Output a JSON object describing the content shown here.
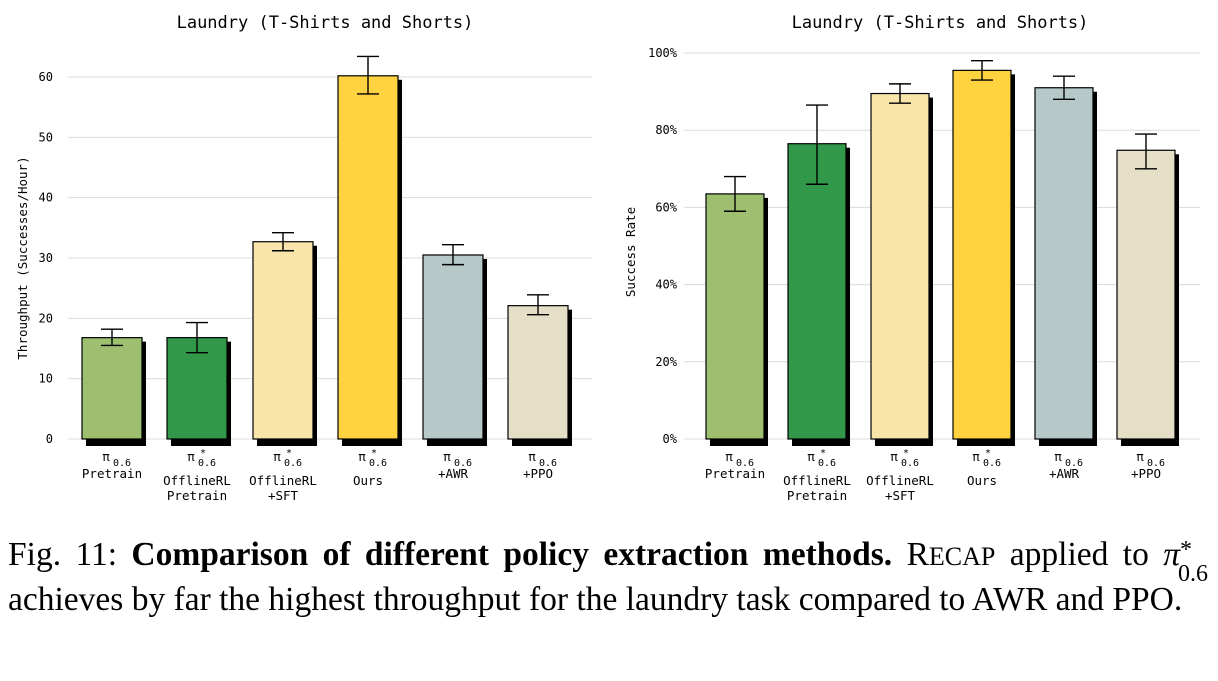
{
  "figure": {
    "caption": {
      "prefix": "Fig. 11:",
      "bold": "Comparison of different policy extraction methods.",
      "recap_first": "R",
      "recap_rest": "ECAP",
      "text1": "applied to",
      "pi": "π",
      "sup": "*",
      "sub": "0.6",
      "text2": "achieves by far the highest throughput for the laundry task compared to AWR and PPO."
    }
  },
  "chart_data": [
    {
      "type": "bar",
      "title": "Laundry (T-Shirts and Shorts)",
      "ylabel": "Throughput (Successes/Hour)",
      "xlabel": "",
      "ylim": [
        0,
        65
      ],
      "yticks": [
        0,
        10,
        20,
        30,
        40,
        50,
        60
      ],
      "ytick_labels": [
        "0",
        "10",
        "20",
        "30",
        "40",
        "50",
        "60"
      ],
      "grid": true,
      "categories": [
        {
          "pi": "π",
          "sup": "",
          "sub": "0.6",
          "line1": "Pretrain",
          "line2": ""
        },
        {
          "pi": "π",
          "sup": "*",
          "sub": "0.6",
          "line1": "OfflineRL",
          "line2": "Pretrain"
        },
        {
          "pi": "π",
          "sup": "*",
          "sub": "0.6",
          "line1": "OfflineRL",
          "line2": "+SFT"
        },
        {
          "pi": "π",
          "sup": "*",
          "sub": "0.6",
          "line1": "Ours",
          "line2": ""
        },
        {
          "pi": "π",
          "sup": "",
          "sub": "0.6",
          "line1": "+AWR",
          "line2": ""
        },
        {
          "pi": "π",
          "sup": "",
          "sub": "0.6",
          "line1": "+PPO",
          "line2": ""
        }
      ],
      "values": [
        16.8,
        16.8,
        32.7,
        60.2,
        30.5,
        22.1
      ],
      "error_low": [
        15.5,
        14.3,
        31.2,
        57.2,
        28.9,
        20.6
      ],
      "error_high": [
        18.2,
        19.3,
        34.2,
        63.4,
        32.2,
        23.9
      ],
      "colors": [
        "#9dbf6f",
        "#33994a",
        "#f9e4aa",
        "#ffd23f",
        "#b7c8c8",
        "#e6dfc8"
      ]
    },
    {
      "type": "bar",
      "title": "Laundry (T-Shirts and Shorts)",
      "ylabel": "Success Rate",
      "xlabel": "",
      "ylim": [
        0,
        100
      ],
      "yticks": [
        0,
        20,
        40,
        60,
        80,
        100
      ],
      "ytick_labels": [
        "0%",
        "20%",
        "40%",
        "60%",
        "80%",
        "100%"
      ],
      "grid": true,
      "categories": [
        {
          "pi": "π",
          "sup": "",
          "sub": "0.6",
          "line1": "Pretrain",
          "line2": ""
        },
        {
          "pi": "π",
          "sup": "*",
          "sub": "0.6",
          "line1": "OfflineRL",
          "line2": "Pretrain"
        },
        {
          "pi": "π",
          "sup": "*",
          "sub": "0.6",
          "line1": "OfflineRL",
          "line2": "+SFT"
        },
        {
          "pi": "π",
          "sup": "*",
          "sub": "0.6",
          "line1": "Ours",
          "line2": ""
        },
        {
          "pi": "π",
          "sup": "",
          "sub": "0.6",
          "line1": "+AWR",
          "line2": ""
        },
        {
          "pi": "π",
          "sup": "",
          "sub": "0.6",
          "line1": "+PPO",
          "line2": ""
        }
      ],
      "values": [
        63.5,
        76.5,
        89.5,
        95.5,
        91.0,
        74.8
      ],
      "error_low": [
        59.0,
        66.0,
        87.0,
        93.0,
        88.0,
        70.0
      ],
      "error_high": [
        68.0,
        86.5,
        92.0,
        98.0,
        94.0,
        79.0
      ],
      "colors": [
        "#9dbf6f",
        "#33994a",
        "#f9e4aa",
        "#ffd23f",
        "#b7c8c8",
        "#e6dfc8"
      ]
    }
  ]
}
